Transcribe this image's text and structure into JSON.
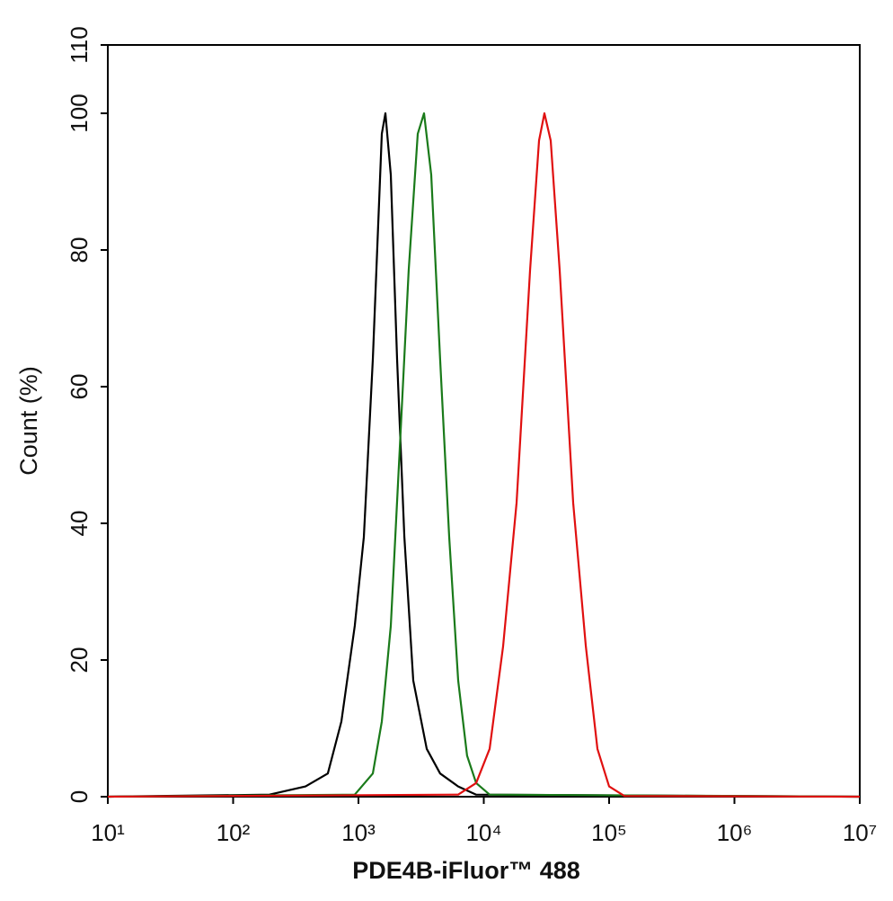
{
  "chart_data": {
    "type": "line",
    "x_label": "PDE4B-iFluor™ 488",
    "y_label": "Count  (%)",
    "xlim": [
      10,
      10000000
    ],
    "xlog": true,
    "xticks": [
      {
        "value": 10,
        "label": "10¹"
      },
      {
        "value": 100,
        "label": "10²"
      },
      {
        "value": 1000,
        "label": "10³"
      },
      {
        "value": 10000,
        "label": "10⁴"
      },
      {
        "value": 100000,
        "label": "10⁵"
      },
      {
        "value": 1000000,
        "label": "10⁶"
      },
      {
        "value": 10000000,
        "label": "10⁷"
      }
    ],
    "ylim": [
      0,
      110
    ],
    "yticks": [
      0,
      20,
      40,
      60,
      80,
      100,
      110
    ],
    "series": [
      {
        "color": "#000000",
        "x": [
          10,
          195,
          378,
          570,
          731,
          935,
          1104,
          1303,
          1535,
          1641,
          1811,
          2032,
          2323,
          2735,
          3508,
          4487,
          6252,
          8690,
          10000000
        ],
        "values": [
          0,
          0.3,
          1.5,
          3.4,
          11,
          25,
          38,
          64,
          97,
          100,
          91,
          64,
          38,
          17,
          7,
          3.4,
          1.5,
          0.3,
          0
        ]
      },
      {
        "color": "#1a7a1a",
        "x": [
          10,
          935,
          1303,
          1535,
          1811,
          2138,
          2518,
          2972,
          3335,
          3808,
          4487,
          5297,
          6252,
          7362,
          8690,
          11140,
          10000000
        ],
        "values": [
          0,
          0.3,
          3.4,
          11,
          25,
          51,
          77,
          97,
          100,
          91,
          64,
          38,
          17,
          6,
          2,
          0.3,
          0
        ]
      },
      {
        "color": "#e01010",
        "x": [
          10,
          6252,
          8690,
          11140,
          14260,
          18280,
          23390,
          27610,
          30480,
          34200,
          40360,
          51640,
          65160,
          80720,
          100000,
          132400,
          10000000
        ],
        "values": [
          0,
          0.3,
          2,
          7,
          22,
          43,
          77,
          96,
          100,
          96,
          77,
          43,
          22,
          7,
          1.5,
          0.1,
          0
        ]
      }
    ]
  }
}
